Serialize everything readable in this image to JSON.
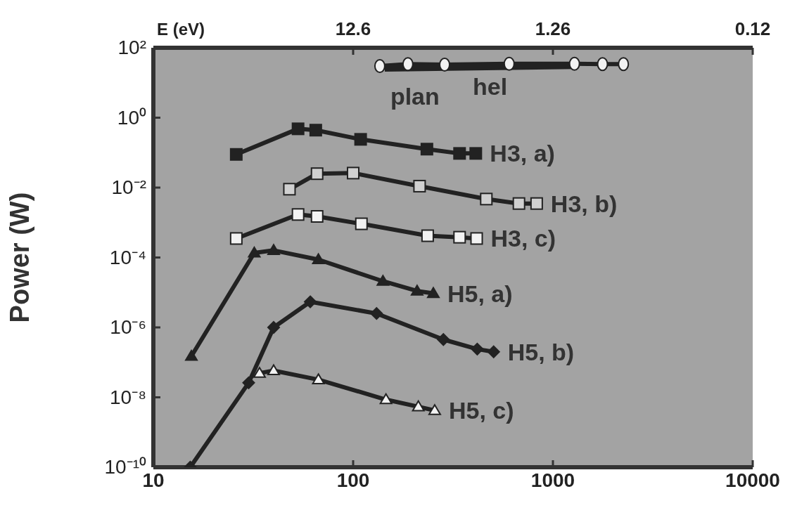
{
  "chart_data": {
    "type": "line",
    "ylabel": "Power (W)",
    "log": "xy",
    "grid": false,
    "legend": false,
    "annotations": [
      "E (eV)",
      "12.6",
      "1.26",
      "0.12"
    ],
    "xlim": [
      10,
      10000
    ],
    "xticks": [
      10,
      100,
      1000,
      10000
    ],
    "ylim": [
      1e-10,
      100
    ],
    "yticks": [
      {
        "value": 100,
        "label": "10²"
      },
      {
        "value": 1,
        "label": "10⁰"
      },
      {
        "value": 0.01,
        "label": "10⁻²"
      },
      {
        "value": 0.0001,
        "label": "10⁻⁴"
      },
      {
        "value": 1e-06,
        "label": "10⁻⁶"
      },
      {
        "value": 1e-08,
        "label": "10⁻⁸"
      },
      {
        "value": 1e-10,
        "label": "10⁻¹⁰"
      }
    ],
    "series": [
      {
        "name": "plan",
        "color": "#f2f2f2",
        "marker": "circle",
        "x": [
          136,
          188,
          287,
          604,
          1282,
          1771,
          2254
        ],
        "values": [
          30,
          34,
          33,
          35,
          35,
          34,
          34
        ]
      },
      {
        "name": "hel",
        "color": "#222222",
        "marker": "none",
        "x": [
          144,
          1282
        ],
        "values": [
          26,
          31
        ]
      },
      {
        "name": "H3, a)",
        "color": "#222222",
        "marker": "square",
        "x": [
          26,
          53,
          65,
          109,
          234,
          341,
          411
        ],
        "values": [
          0.089,
          0.48,
          0.44,
          0.24,
          0.126,
          0.095,
          0.095
        ]
      },
      {
        "name": "H3, b)",
        "color": "#d0d0d0",
        "marker": "square",
        "x": [
          48,
          66,
          100,
          215,
          464,
          676,
          829
        ],
        "values": [
          0.009,
          0.025,
          0.026,
          0.011,
          0.0047,
          0.0035,
          0.0035
        ]
      },
      {
        "name": "H3, c)",
        "color": "#f2f2f2",
        "marker": "square",
        "x": [
          26,
          53,
          66,
          110,
          236,
          341,
          415
        ],
        "values": [
          0.00035,
          0.0017,
          0.0015,
          0.00092,
          0.00042,
          0.00038,
          0.00035
        ]
      },
      {
        "name": "H5, a)",
        "color": "#222222",
        "marker": "triangle",
        "x": [
          15.5,
          32,
          40,
          67,
          141,
          209,
          252
        ],
        "values": [
          1.5e-07,
          0.000135,
          0.00016,
          8.7e-05,
          2.1e-05,
          1.1e-05,
          9.4e-06
        ]
      },
      {
        "name": "H5, b)",
        "color": "#222222",
        "marker": "diamond",
        "x": [
          15.3,
          30,
          40,
          61,
          131,
          283,
          418,
          505
        ],
        "values": [
          1e-10,
          2.6e-08,
          1e-06,
          5.4e-06,
          2.5e-06,
          4.5e-07,
          2.4e-07,
          2e-07
        ]
      },
      {
        "name": "H5, c)",
        "color": "#f2f2f2",
        "marker": "triangle",
        "x": [
          34,
          40,
          67,
          146,
          212,
          256
        ],
        "values": [
          4.9e-08,
          5.8e-08,
          3.2e-08,
          8.6e-09,
          5.4e-09,
          4.2e-09
        ]
      }
    ]
  }
}
